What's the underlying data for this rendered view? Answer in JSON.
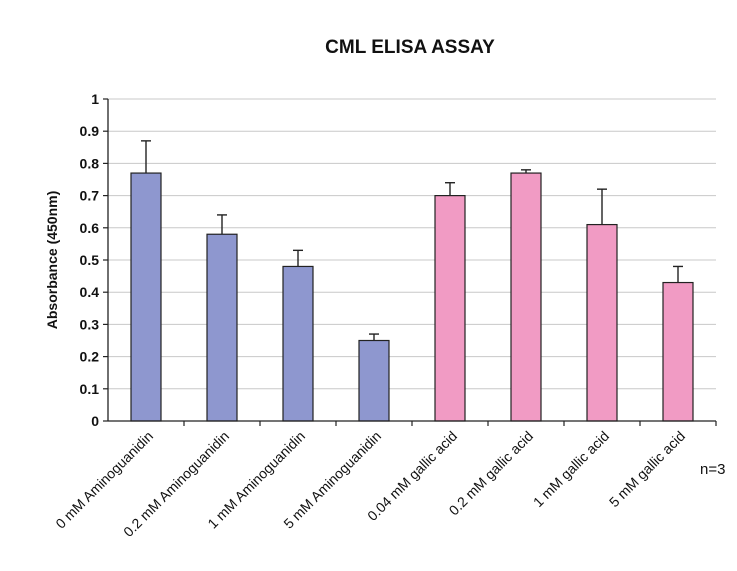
{
  "chart_data": {
    "type": "bar",
    "title": "CML ELISA ASSAY",
    "ylabel": "Absorbance (450nm)",
    "xlabel": "",
    "ylim": [
      0,
      1
    ],
    "yticks": [
      "0",
      "0.1",
      "0.2",
      "0.3",
      "0.4",
      "0.5",
      "0.6",
      "0.7",
      "0.8",
      "0.9",
      "1"
    ],
    "grid": true,
    "legend": "none",
    "categories": [
      "0 mM Aminoguanidin",
      "0.2 mM Aminoguanidin",
      "1 mM Aminoguanidin",
      "5 mM Aminoguanidin",
      "0.04 mM gallic acid",
      "0.2 mM gallic acid",
      "1 mM gallic acid",
      "5 mM gallic acid"
    ],
    "values": [
      0.77,
      0.58,
      0.48,
      0.25,
      0.7,
      0.77,
      0.61,
      0.43
    ],
    "errors": [
      0.1,
      0.06,
      0.05,
      0.02,
      0.04,
      0.01,
      0.11,
      0.05
    ],
    "bar_colors": [
      "#8e97cf",
      "#8e97cf",
      "#8e97cf",
      "#8e97cf",
      "#f19bc4",
      "#f19bc4",
      "#f19bc4",
      "#f19bc4"
    ],
    "annotation": "n=3"
  },
  "colors": {
    "aminoguanidin_bar": "#8e97cf",
    "gallic_acid_bar": "#f19bc4",
    "grid": "#c8c8c8",
    "axis": "#222222"
  }
}
